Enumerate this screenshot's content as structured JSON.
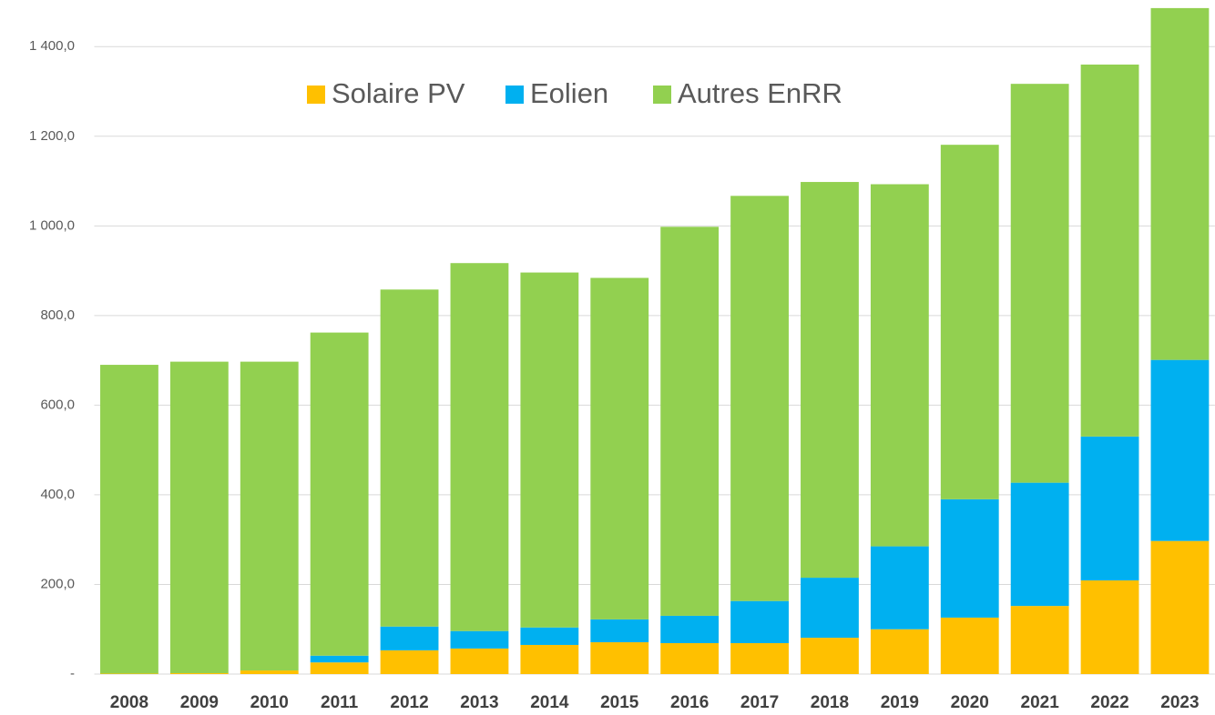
{
  "chart_data": {
    "type": "stacked_bar",
    "categories": [
      "2008",
      "2009",
      "2010",
      "2011",
      "2012",
      "2013",
      "2014",
      "2015",
      "2016",
      "2017",
      "2018",
      "2019",
      "2020",
      "2021",
      "2022",
      "2023"
    ],
    "series": [
      {
        "name": "Solaire PV",
        "color": "#FFC000",
        "values": [
          1,
          2,
          8,
          26,
          53,
          57,
          65,
          71,
          69,
          69,
          81,
          100,
          126,
          152,
          209,
          297
        ]
      },
      {
        "name": "Eolien",
        "color": "#00B0F0",
        "values": [
          0,
          0,
          0,
          15,
          53,
          39,
          39,
          51,
          61,
          94,
          134,
          185,
          264,
          275,
          321,
          404
        ]
      },
      {
        "name": "Autres EnRR",
        "color": "#92D050",
        "values": [
          689,
          695,
          689,
          721,
          752,
          821,
          792,
          762,
          868,
          904,
          883,
          808,
          791,
          890,
          830,
          785
        ]
      }
    ],
    "ylim": [
      0,
      1500
    ],
    "yticks": [
      {
        "value": 0,
        "label": "-"
      },
      {
        "value": 200,
        "label": "200,0"
      },
      {
        "value": 400,
        "label": "400,0"
      },
      {
        "value": 600,
        "label": "600,0"
      },
      {
        "value": 800,
        "label": "800,0"
      },
      {
        "value": 1000,
        "label": "1 000,0"
      },
      {
        "value": 1200,
        "label": "1 200,0"
      },
      {
        "value": 1400,
        "label": "1 400,0"
      }
    ],
    "grid": true,
    "legend": "top"
  }
}
